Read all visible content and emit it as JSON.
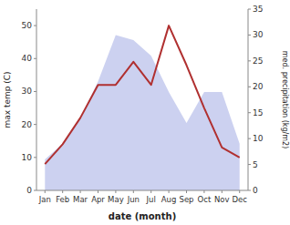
{
  "chart_data": {
    "type": "line",
    "xlabel": "date (month)",
    "ylabel": "max temp (C)",
    "y2label": "med. precipitation (kg/m2)",
    "categories": [
      "Jan",
      "Feb",
      "Mar",
      "Apr",
      "May",
      "Jun",
      "Jul",
      "Aug",
      "Sep",
      "Oct",
      "Nov",
      "Dec"
    ],
    "series": [
      {
        "type": "area",
        "axis": "y2",
        "color": "#b0b8e8",
        "values": [
          6,
          9,
          14,
          21,
          30,
          29,
          26,
          19,
          13,
          19,
          19,
          9
        ]
      },
      {
        "type": "line",
        "color": "#b03030",
        "values": [
          8,
          14,
          22,
          32,
          32,
          39,
          32,
          50,
          38,
          25,
          13,
          10
        ]
      }
    ],
    "ylim": [
      0,
      55
    ],
    "yticks": [
      0,
      10,
      20,
      30,
      40,
      50
    ],
    "y2lim": [
      0,
      35
    ],
    "y2ticks": [
      0,
      5,
      10,
      15,
      20,
      25,
      30,
      35
    ],
    "grid": false
  }
}
